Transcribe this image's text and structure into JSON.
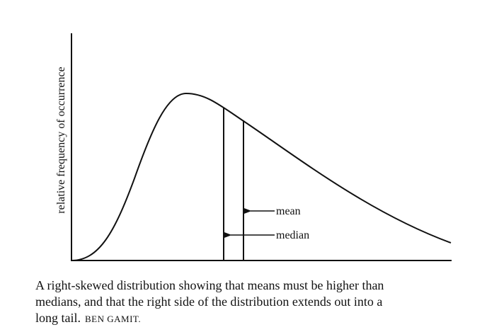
{
  "figure": {
    "y_axis_label": "relative frequency of occurrence",
    "mean_label": "mean",
    "median_label": "median"
  },
  "caption": {
    "lines": [
      "A right-skewed distribution showing that means must be higher than",
      "medians, and that the right side of the distribution extends out into a",
      "long tail."
    ],
    "credit": "BEN GAMIT."
  }
}
